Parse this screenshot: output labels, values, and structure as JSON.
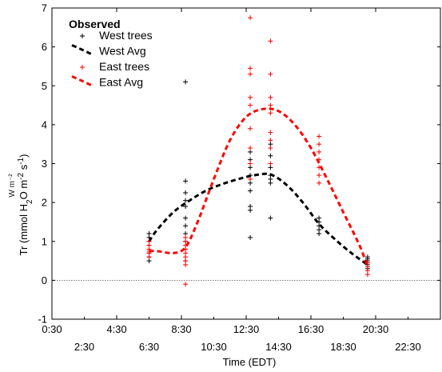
{
  "chart_data": {
    "type": "scatter",
    "xlabel": "Time (EDT)",
    "ylabel_parts": {
      "pre": "Tr (mmol H",
      "sub": "2",
      "mid": "O m",
      "sup1": "-2",
      "post": " s",
      "sup2": "-1",
      "end": ")"
    },
    "ylabel_ghost": "W m⁻²",
    "x_ticks_upper": [
      "0:30",
      "4:30",
      "8:30",
      "12:30",
      "16:30",
      "20:30"
    ],
    "x_ticks_lower": [
      "2:30",
      "6:30",
      "10:30",
      "14:30",
      "18:30",
      "22:30"
    ],
    "y_ticks": [
      "-1",
      "0",
      "1",
      "2",
      "3",
      "4",
      "5",
      "6",
      "7"
    ],
    "xlim": [
      0.5,
      24.5
    ],
    "ylim": [
      -1,
      7
    ],
    "zero_reference_line": true,
    "legend": {
      "title": "Observed",
      "position": "top-left",
      "items": [
        "West trees",
        "West Avg",
        "East trees",
        "East Avg"
      ]
    },
    "colors": {
      "west": "#000000",
      "east": "#ff0000"
    },
    "series": [
      {
        "name": "West trees",
        "kind": "points",
        "color": "#000000",
        "points": [
          [
            6.5,
            0.5
          ],
          [
            6.5,
            0.6
          ],
          [
            6.5,
            0.7
          ],
          [
            6.5,
            0.8
          ],
          [
            6.5,
            0.9
          ],
          [
            6.5,
            1.0
          ],
          [
            6.5,
            1.1
          ],
          [
            6.5,
            1.2
          ],
          [
            8.75,
            0.5
          ],
          [
            8.75,
            0.8
          ],
          [
            8.75,
            1.0
          ],
          [
            8.75,
            1.2
          ],
          [
            8.75,
            1.4
          ],
          [
            8.75,
            1.6
          ],
          [
            8.75,
            1.9
          ],
          [
            8.75,
            2.05
          ],
          [
            8.75,
            2.25
          ],
          [
            8.75,
            2.55
          ],
          [
            8.75,
            5.1
          ],
          [
            12.75,
            1.1
          ],
          [
            12.75,
            1.8
          ],
          [
            12.75,
            1.9
          ],
          [
            12.75,
            2.3
          ],
          [
            12.75,
            2.5
          ],
          [
            12.75,
            2.7
          ],
          [
            12.75,
            2.9
          ],
          [
            12.75,
            3.1
          ],
          [
            12.75,
            3.3
          ],
          [
            14.0,
            1.6
          ],
          [
            14.0,
            2.5
          ],
          [
            14.0,
            2.6
          ],
          [
            14.0,
            2.7
          ],
          [
            14.0,
            2.9
          ],
          [
            14.0,
            3.2
          ],
          [
            14.0,
            3.5
          ],
          [
            17.0,
            1.2
          ],
          [
            17.0,
            1.3
          ],
          [
            17.0,
            1.4
          ],
          [
            17.0,
            1.5
          ],
          [
            17.0,
            1.6
          ],
          [
            20.0,
            0.3
          ],
          [
            20.0,
            0.4
          ],
          [
            20.0,
            0.5
          ],
          [
            20.0,
            0.55
          ],
          [
            20.0,
            0.6
          ]
        ]
      },
      {
        "name": "West Avg",
        "kind": "curve",
        "color": "#000000",
        "points": [
          [
            6.5,
            1.0
          ],
          [
            7.0,
            1.3
          ],
          [
            8.0,
            1.75
          ],
          [
            9.0,
            2.05
          ],
          [
            10.0,
            2.3
          ],
          [
            11.0,
            2.47
          ],
          [
            12.0,
            2.6
          ],
          [
            13.0,
            2.7
          ],
          [
            14.0,
            2.72
          ],
          [
            15.0,
            2.45
          ],
          [
            16.0,
            2.0
          ],
          [
            17.0,
            1.45
          ],
          [
            18.0,
            1.05
          ],
          [
            19.0,
            0.7
          ],
          [
            20.0,
            0.4
          ]
        ]
      },
      {
        "name": "East trees",
        "kind": "points",
        "color": "#ff0000",
        "points": [
          [
            6.5,
            0.6
          ],
          [
            6.5,
            0.7
          ],
          [
            6.5,
            0.75
          ],
          [
            6.5,
            0.8
          ],
          [
            6.5,
            0.9
          ],
          [
            6.5,
            1.0
          ],
          [
            8.75,
            -0.1
          ],
          [
            8.75,
            0.4
          ],
          [
            8.75,
            0.5
          ],
          [
            8.75,
            0.6
          ],
          [
            8.75,
            0.7
          ],
          [
            8.75,
            0.8
          ],
          [
            8.75,
            0.9
          ],
          [
            8.75,
            1.0
          ],
          [
            8.75,
            1.1
          ],
          [
            12.75,
            2.6
          ],
          [
            12.75,
            3.0
          ],
          [
            12.75,
            3.4
          ],
          [
            12.75,
            3.9
          ],
          [
            12.75,
            4.5
          ],
          [
            12.75,
            4.7
          ],
          [
            12.75,
            5.3
          ],
          [
            12.75,
            5.45
          ],
          [
            12.75,
            6.75
          ],
          [
            14.0,
            3.0
          ],
          [
            14.0,
            3.4
          ],
          [
            14.0,
            3.6
          ],
          [
            14.0,
            3.8
          ],
          [
            14.0,
            4.3
          ],
          [
            14.0,
            4.5
          ],
          [
            14.0,
            4.7
          ],
          [
            14.0,
            5.3
          ],
          [
            14.0,
            6.15
          ],
          [
            17.0,
            2.5
          ],
          [
            17.0,
            2.7
          ],
          [
            17.0,
            2.9
          ],
          [
            17.0,
            3.1
          ],
          [
            17.0,
            3.3
          ],
          [
            17.0,
            3.5
          ],
          [
            17.0,
            3.7
          ],
          [
            20.0,
            0.15
          ],
          [
            20.0,
            0.25
          ],
          [
            20.0,
            0.35
          ],
          [
            20.0,
            0.45
          ]
        ]
      },
      {
        "name": "East Avg",
        "kind": "curve",
        "color": "#ff0000",
        "points": [
          [
            6.5,
            0.75
          ],
          [
            7.0,
            0.75
          ],
          [
            8.0,
            0.7
          ],
          [
            8.75,
            0.85
          ],
          [
            9.5,
            1.5
          ],
          [
            10.5,
            2.6
          ],
          [
            11.5,
            3.6
          ],
          [
            12.5,
            4.2
          ],
          [
            13.5,
            4.4
          ],
          [
            14.5,
            4.35
          ],
          [
            15.5,
            4.0
          ],
          [
            16.5,
            3.4
          ],
          [
            17.5,
            2.6
          ],
          [
            18.5,
            1.75
          ],
          [
            19.5,
            0.9
          ],
          [
            20.0,
            0.35
          ]
        ]
      }
    ]
  }
}
